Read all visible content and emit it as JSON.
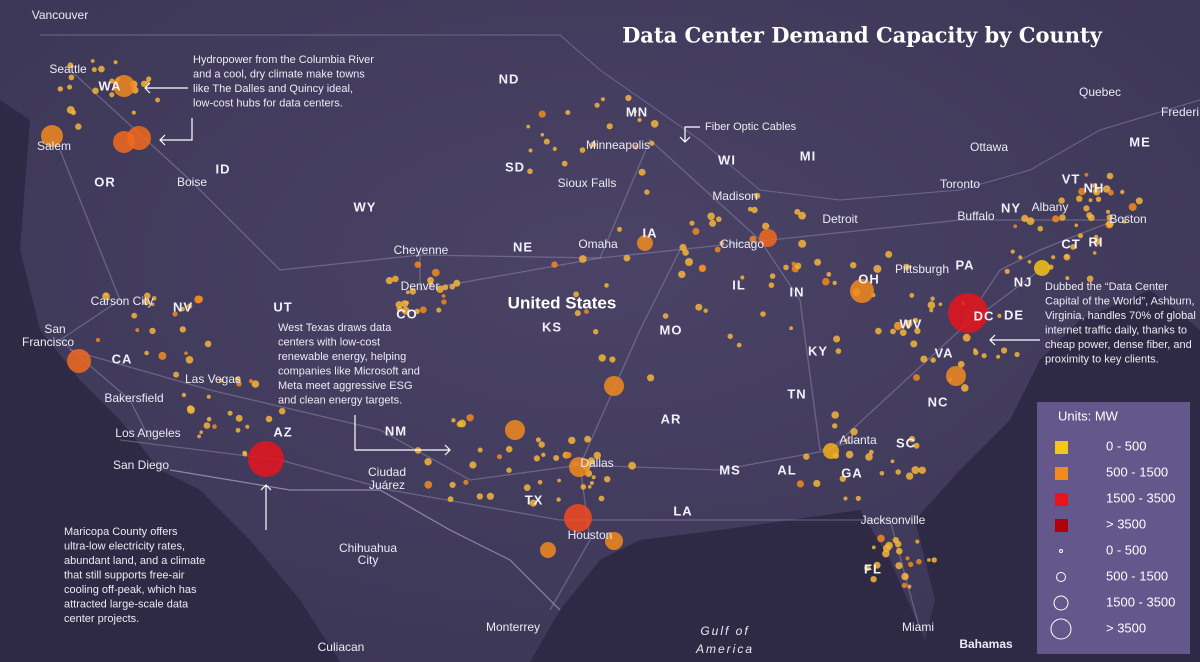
{
  "header": {
    "title": "Data Center Demand Capacity by County"
  },
  "country_label": "United States",
  "states": [
    "WA",
    "OR",
    "ID",
    "NV",
    "CA",
    "UT",
    "AZ",
    "WY",
    "CO",
    "NM",
    "ND",
    "SD",
    "NE",
    "KS",
    "MN",
    "IA",
    "MO",
    "AR",
    "LA",
    "MS",
    "AL",
    "TN",
    "KY",
    "IL",
    "IN",
    "WI",
    "MI",
    "OH",
    "WV",
    "VA",
    "NC",
    "SC",
    "GA",
    "FL",
    "PA",
    "NY",
    "VT",
    "NH",
    "ME",
    "CT",
    "RI",
    "NJ",
    "DE",
    "DC",
    "TX"
  ],
  "cities": [
    "Vancouver",
    "Seattle",
    "Salem",
    "Boise",
    "Carson City",
    "Las Vegas",
    "Bakersfield",
    "Los Angeles",
    "San Diego",
    "Cheyenne",
    "Denver",
    "Chihuahua",
    "City",
    "Culiacan",
    "Monterrey",
    "Dallas",
    "Houston",
    "Omaha",
    "Sioux Falls",
    "Minneapolis",
    "Madison",
    "Chicago",
    "Detroit",
    "Toronto",
    "Buffalo",
    "Albany",
    "Boston",
    "Pittsburgh",
    "Atlanta",
    "Jacksonville",
    "Miami",
    "Ottawa",
    "Quebec",
    "Frederi",
    "San",
    "Francisco",
    "Ciudad",
    "Juárez",
    "Bahamas",
    "Gulf of",
    "America"
  ],
  "annotations": [
    [
      "Hydropower from the Columbia River",
      "and a cool, dry climate make towns",
      "like The Dalles and Quincy ideal,",
      "low-cost hubs for data centers."
    ],
    [
      "Fiber Optic Cables"
    ],
    [
      "West Texas draws data",
      "centers with low-cost",
      "renewable energy, helping",
      "companies like Microsoft and",
      "Meta meet aggressive ESG",
      "and clean energy targets."
    ],
    [
      "Maricopa County offers",
      "ultra-low electricity rates,",
      "abundant land, and a climate",
      "that still supports free-air",
      "cooling off-peak, which has",
      "attracted large-scale data",
      "center projects."
    ],
    [
      "Dubbed the “Data Center",
      "Capital of the World”, Ashburn,",
      "Virginia, handles 70% of global",
      "internet traffic daily, thanks to",
      "cheap power, dense fiber, and",
      "proximity to key clients."
    ]
  ],
  "legend": {
    "title": "Units: MW",
    "colors": [
      {
        "label": "0 - 500",
        "color": "#f5c518"
      },
      {
        "label": "500 - 1500",
        "color": "#f28a1e"
      },
      {
        "label": "1500 - 3500",
        "color": "#e8141c"
      },
      {
        "label": "> 3500",
        "color": "#b0000a"
      }
    ],
    "sizes": [
      "0 - 500",
      "500 - 1500",
      "1500 - 3500",
      "> 3500"
    ]
  }
}
